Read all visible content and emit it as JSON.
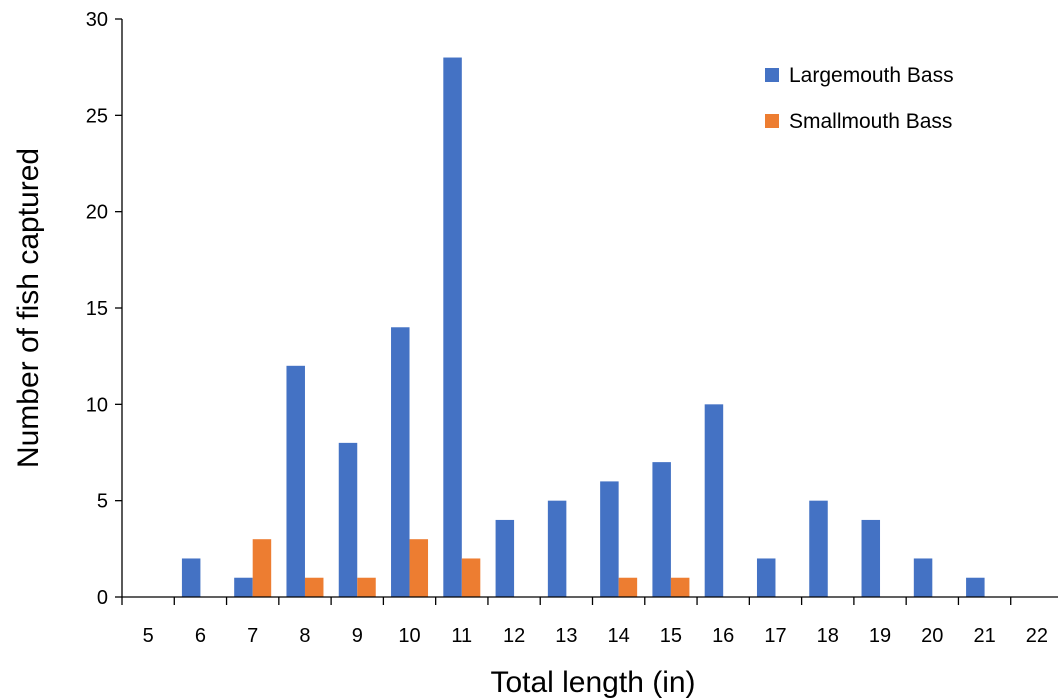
{
  "chart_data": {
    "type": "bar",
    "title": "",
    "xlabel": "Total length (in)",
    "ylabel": "Number of fish captured",
    "categories": [
      "5",
      "6",
      "7",
      "8",
      "9",
      "10",
      "11",
      "12",
      "13",
      "14",
      "15",
      "16",
      "17",
      "18",
      "19",
      "20",
      "21",
      "22"
    ],
    "ylim": [
      0,
      30
    ],
    "yticks": [
      0,
      5,
      10,
      15,
      20,
      25,
      30
    ],
    "grid": false,
    "legend_position": "top-right",
    "series": [
      {
        "name": "Largemouth Bass",
        "color": "#4472C4",
        "values": [
          0,
          2,
          1,
          12,
          8,
          14,
          28,
          4,
          5,
          6,
          7,
          10,
          2,
          5,
          4,
          2,
          1,
          0
        ]
      },
      {
        "name": "Smallmouth Bass",
        "color": "#ED7D31",
        "values": [
          0,
          0,
          3,
          1,
          1,
          3,
          2,
          0,
          0,
          1,
          1,
          0,
          0,
          0,
          0,
          0,
          0,
          0
        ]
      }
    ]
  }
}
